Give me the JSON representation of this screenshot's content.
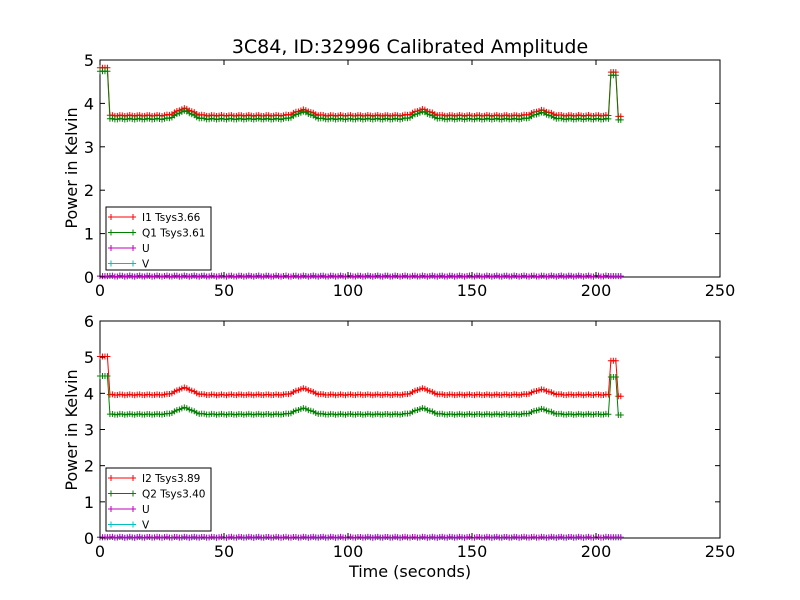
{
  "figure": {
    "title": "3C84, ID:32996 Calibrated Amplitude"
  },
  "chart_data": [
    {
      "type": "line",
      "title": "3C84, ID:32996 Calibrated Amplitude",
      "xlabel": "",
      "ylabel": "Power in Kelvin",
      "xlim": [
        0,
        250
      ],
      "ylim": [
        0,
        5
      ],
      "xticks": [
        "0",
        "50",
        "100",
        "150",
        "200",
        "250"
      ],
      "yticks": [
        "0",
        "1",
        "2",
        "3",
        "4",
        "5"
      ],
      "legend_position": "lower-left",
      "grid": false,
      "series": [
        {
          "name": "I1 Tsys3.66",
          "color": "#ff0000",
          "base": 3.72,
          "bumps": [
            3.88,
            3.85,
            3.86,
            3.84
          ],
          "start": 4.82,
          "spike": 4.72,
          "end": 3.7
        },
        {
          "name": "Q1 Tsys3.61",
          "color": "#008000",
          "base": 3.64,
          "bumps": [
            3.82,
            3.8,
            3.8,
            3.78
          ],
          "start": 4.74,
          "spike": 4.65,
          "end": 3.62
        },
        {
          "name": "U",
          "color": "#bf00bf",
          "base": 0.02,
          "bumps": [],
          "start": 0.02,
          "spike": 0.02,
          "end": 0.02
        },
        {
          "name": "V",
          "color": "#00bfbf",
          "base": 0.02,
          "bumps": [],
          "start": 0.02,
          "spike": 0.02,
          "end": 0.02
        }
      ],
      "x_range": [
        0,
        210
      ],
      "bump_centers": [
        34,
        82,
        130,
        178
      ],
      "spike_x": [
        206,
        208
      ]
    },
    {
      "type": "line",
      "title": "",
      "xlabel": "Time (seconds)",
      "ylabel": "Power in Kelvin",
      "xlim": [
        0,
        250
      ],
      "ylim": [
        0,
        6
      ],
      "xticks": [
        "0",
        "50",
        "100",
        "150",
        "200",
        "250"
      ],
      "yticks": [
        "0",
        "1",
        "2",
        "3",
        "4",
        "5",
        "6"
      ],
      "legend_position": "lower-left",
      "grid": false,
      "series": [
        {
          "name": "I2 Tsys3.89",
          "color": "#ff0000",
          "base": 3.96,
          "bumps": [
            4.15,
            4.13,
            4.13,
            4.1
          ],
          "start": 5.02,
          "spike": 4.9,
          "end": 3.92
        },
        {
          "name": "Q2 Tsys3.40",
          "color": "#008000",
          "base": 3.42,
          "bumps": [
            3.6,
            3.58,
            3.58,
            3.56
          ],
          "start": 4.48,
          "spike": 4.45,
          "end": 3.4
        },
        {
          "name": "U",
          "color": "#bf00bf",
          "base": 0.02,
          "bumps": [],
          "start": 0.02,
          "spike": 0.02,
          "end": 0.02
        },
        {
          "name": "V",
          "color": "#00bfbf",
          "base": 0.02,
          "bumps": [],
          "start": 0.02,
          "spike": 0.02,
          "end": 0.02
        }
      ],
      "x_range": [
        0,
        210
      ],
      "bump_centers": [
        34,
        82,
        130,
        178
      ],
      "spike_x": [
        206,
        208
      ]
    }
  ]
}
